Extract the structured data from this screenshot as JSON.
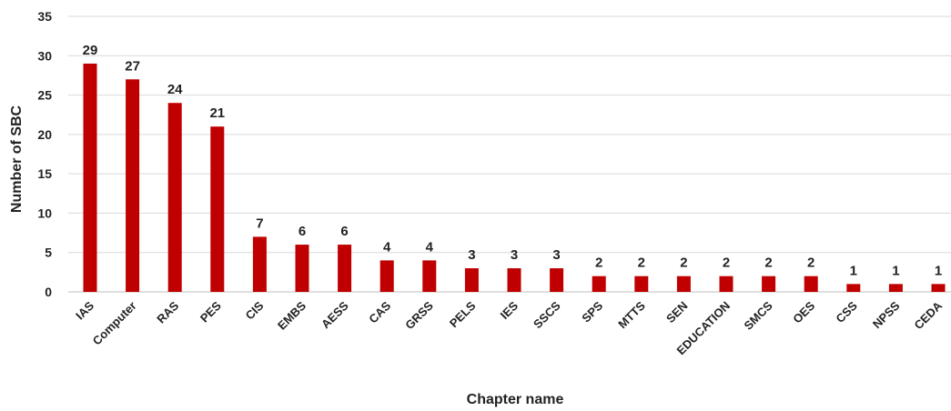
{
  "chart_data": {
    "type": "bar",
    "xlabel": "Chapter name",
    "ylabel": "Number of SBC",
    "ylim": [
      0,
      35
    ],
    "yticks": [
      0,
      5,
      10,
      15,
      20,
      25,
      30,
      35
    ],
    "grid": true,
    "categories": [
      "IAS",
      "Computer",
      "RAS",
      "PES",
      "CIS",
      "EMBS",
      "AESS",
      "CAS",
      "GRSS",
      "PELS",
      "IES",
      "SSCS",
      "SPS",
      "MTTS",
      "SEN",
      "EDUCATION",
      "SMCS",
      "OES",
      "CSS",
      "NPSS",
      "CEDA"
    ],
    "values": [
      29,
      27,
      24,
      21,
      7,
      6,
      6,
      4,
      4,
      3,
      3,
      3,
      2,
      2,
      2,
      2,
      2,
      2,
      1,
      1,
      1
    ],
    "bar_color": "#c00000"
  }
}
